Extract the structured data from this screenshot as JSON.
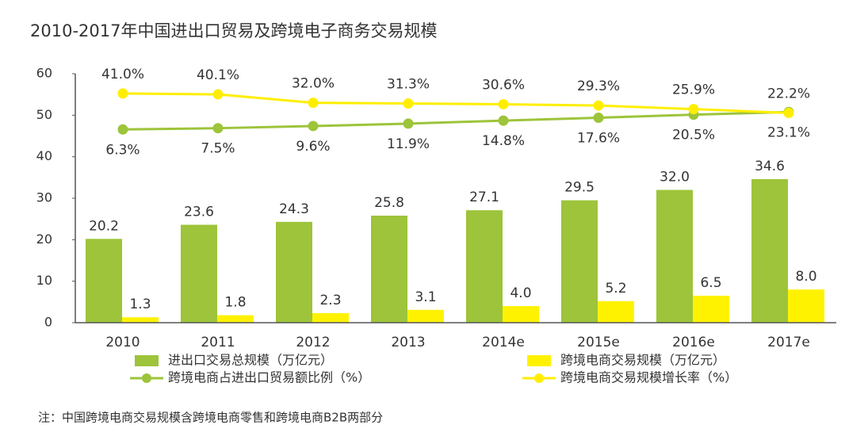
{
  "chart_data": {
    "type": "bar",
    "title": "2010-2017年中国进出口贸易及跨境电子商务交易规模",
    "note": "注：中国跨境电商交易规模含跨境电商零售和跨境电商B2B两部分",
    "categories": [
      "2010",
      "2011",
      "2012",
      "2013",
      "2014e",
      "2015e",
      "2016e",
      "2017e"
    ],
    "ylim": [
      0,
      60
    ],
    "yticks": [
      0,
      10,
      20,
      30,
      40,
      50,
      60
    ],
    "y2lim": [
      -180,
      60
    ],
    "series": [
      {
        "name": "进出口交易总规模（万亿元）",
        "type": "bar",
        "color": "#9dc43a",
        "values": [
          20.2,
          23.6,
          24.3,
          25.8,
          27.1,
          29.5,
          32.0,
          34.6
        ],
        "value_labels": [
          "20.2",
          "23.6",
          "24.3",
          "25.8",
          "27.1",
          "29.5",
          "32.0",
          "34.6"
        ]
      },
      {
        "name": "跨境电商交易规模（万亿元）",
        "type": "bar",
        "color": "#fff200",
        "values": [
          1.3,
          1.8,
          2.3,
          3.1,
          4.0,
          5.2,
          6.5,
          8.0
        ],
        "value_labels": [
          "1.3",
          "1.8",
          "2.3",
          "3.1",
          "4.0",
          "5.2",
          "6.5",
          "8.0"
        ]
      },
      {
        "name": "跨境电商占进出口贸易额比例（%）",
        "type": "line",
        "axis": "y2",
        "color": "#9dc43a",
        "values": [
          6.3,
          7.5,
          9.6,
          11.9,
          14.8,
          17.6,
          20.5,
          23.1
        ],
        "value_labels": [
          "6.3%",
          "7.5%",
          "9.6%",
          "11.9%",
          "14.8%",
          "17.6%",
          "20.5%",
          "23.1%"
        ]
      },
      {
        "name": "跨境电商交易规模增长率（%）",
        "type": "line",
        "axis": "y2",
        "color": "#ffee00",
        "values": [
          41.0,
          40.1,
          32.0,
          31.3,
          30.6,
          29.3,
          25.9,
          22.2
        ],
        "value_labels": [
          "41.0%",
          "40.1%",
          "32.0%",
          "31.3%",
          "30.6%",
          "29.3%",
          "25.9%",
          "22.2%"
        ]
      }
    ]
  }
}
